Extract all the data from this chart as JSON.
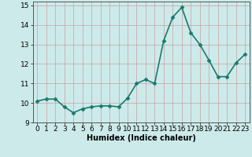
{
  "x": [
    0,
    1,
    2,
    3,
    4,
    5,
    6,
    7,
    8,
    9,
    10,
    11,
    12,
    13,
    14,
    15,
    16,
    17,
    18,
    19,
    20,
    21,
    22,
    23
  ],
  "y": [
    10.1,
    10.2,
    10.2,
    9.8,
    9.5,
    9.7,
    9.8,
    9.85,
    9.85,
    9.8,
    10.25,
    11.0,
    11.2,
    11.0,
    13.2,
    14.4,
    14.9,
    13.6,
    13.0,
    12.2,
    11.35,
    11.35,
    12.05,
    12.5
  ],
  "line_color": "#1a7a6e",
  "marker": "D",
  "marker_size": 2.5,
  "linewidth": 1.2,
  "xlabel": "Humidex (Indice chaleur)",
  "xlim": [
    -0.5,
    23.5
  ],
  "ylim": [
    9.0,
    15.2
  ],
  "yticks": [
    9,
    10,
    11,
    12,
    13,
    14,
    15
  ],
  "xticks": [
    0,
    1,
    2,
    3,
    4,
    5,
    6,
    7,
    8,
    9,
    10,
    11,
    12,
    13,
    14,
    15,
    16,
    17,
    18,
    19,
    20,
    21,
    22,
    23
  ],
  "bg_color": "#cdeaea",
  "grid_color": "#b8d8d8",
  "xlabel_fontsize": 7,
  "tick_fontsize": 6.5
}
